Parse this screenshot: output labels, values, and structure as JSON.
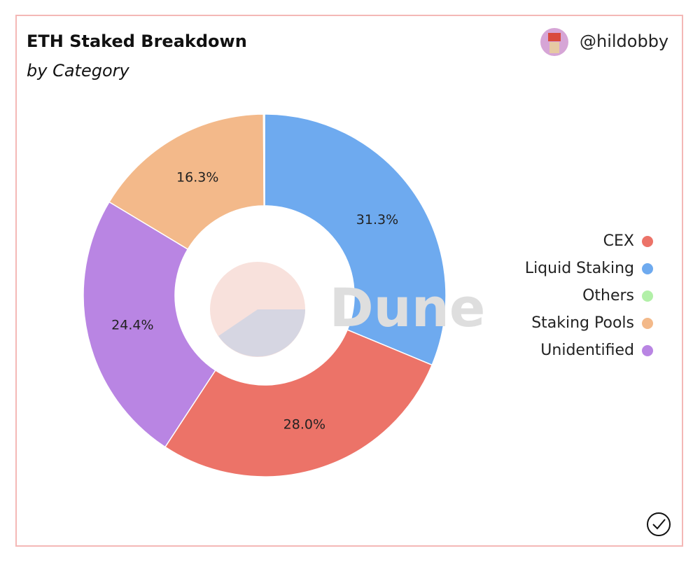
{
  "chart_data": {
    "type": "donut",
    "title": "ETH Staked Breakdown",
    "subtitle": "by Category",
    "author": "@hildobby",
    "watermark": "Dune",
    "categories": [
      "CEX",
      "Liquid Staking",
      "Others",
      "Staking Pools",
      "Unidentified"
    ],
    "values": [
      28.0,
      31.3,
      0.1,
      16.3,
      24.4
    ],
    "value_labels": [
      "28.0%",
      "31.3%",
      null,
      "16.3%",
      "24.4%"
    ],
    "colors": [
      "#ec7368",
      "#6eaaef",
      "#b2f0a8",
      "#f3b98a",
      "#b985e3"
    ],
    "legend": "right"
  }
}
